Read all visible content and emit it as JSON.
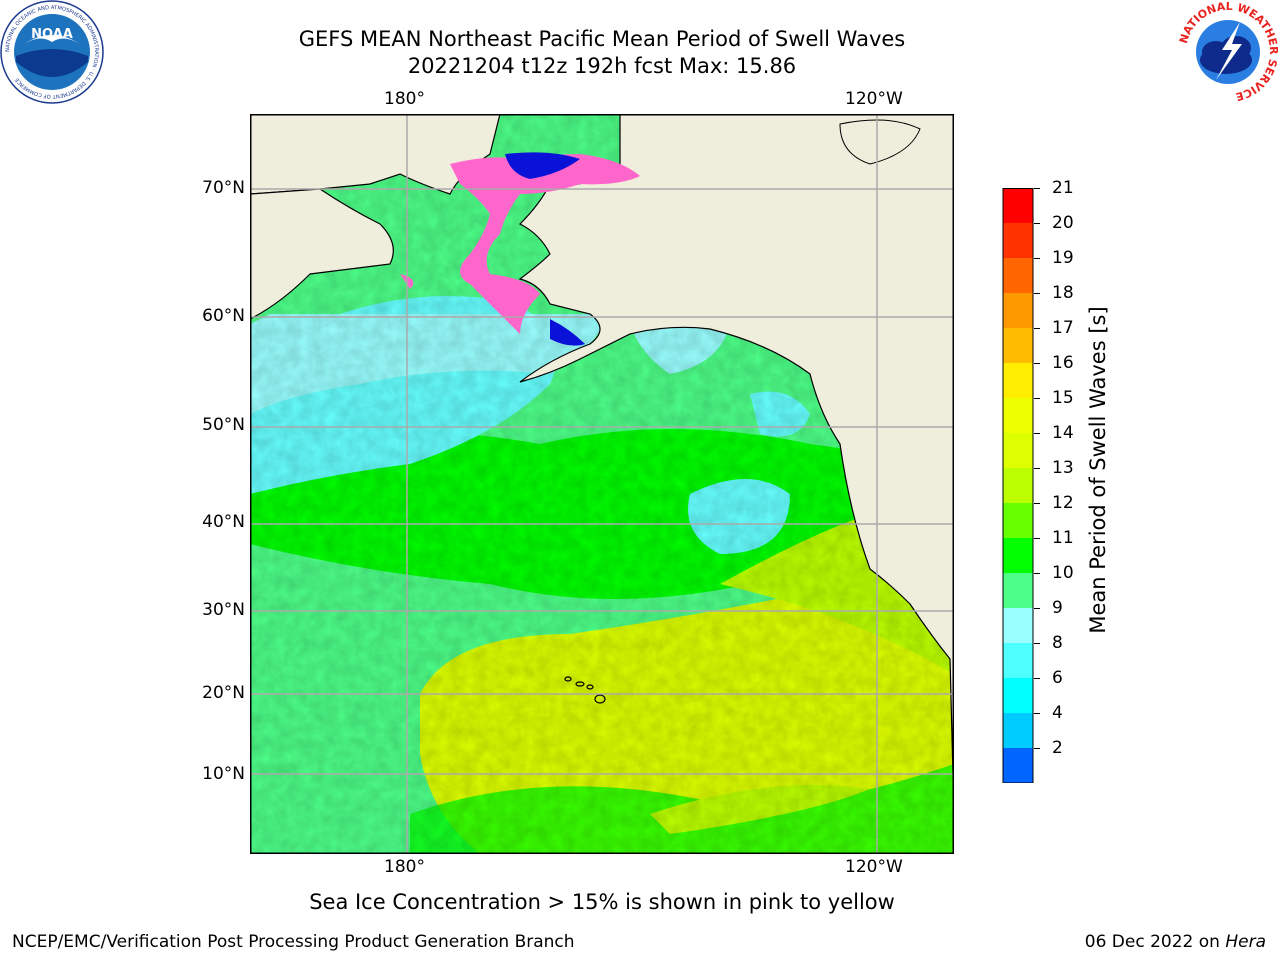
{
  "header": {
    "title_line1": "GEFS MEAN Northeast Pacific Mean Period of Swell Waves",
    "title_line2": "20221204 t12z 192h fcst   Max: 15.86"
  },
  "logos": {
    "left": "NOAA",
    "right": "NATIONAL WEATHER SERVICE",
    "left_ring_text": "NATIONAL OCEANIC AND ATMOSPHERIC ADMINISTRATION · U.S. DEPARTMENT OF COMMERCE"
  },
  "map": {
    "lon_labels_top": [
      "180°",
      "120°W"
    ],
    "lon_labels_bottom": [
      "180°",
      "120°W"
    ],
    "lat_labels": [
      "70°N",
      "60°N",
      "50°N",
      "40°N",
      "30°N",
      "20°N",
      "10°N"
    ],
    "colors": {
      "land": "#efeddb",
      "ice_pink": "#ff66cc",
      "ice_deep": "#0b12d8",
      "cyan": "#66ffff",
      "green": "#33ff33",
      "yellow": "#ddff00"
    }
  },
  "colorbar": {
    "title": "Mean Period of Swell Waves [s]",
    "labels": [
      "21",
      "20",
      "19",
      "18",
      "17",
      "16",
      "15",
      "14",
      "13",
      "12",
      "11",
      "10",
      "9",
      "8",
      "6",
      "4",
      "2"
    ],
    "colors": [
      "#ff0000",
      "#ff3300",
      "#ff6600",
      "#ff9900",
      "#ffbb00",
      "#ffee00",
      "#eeff00",
      "#ddff00",
      "#bbff00",
      "#66ff00",
      "#00ff00",
      "#4dff88",
      "#99ffff",
      "#4dffff",
      "#00ffff",
      "#00ccff",
      "#0066ff",
      "#0000ee"
    ]
  },
  "note": "Sea Ice Concentration > 15% is shown in pink to yellow",
  "footer": {
    "left": "NCEP/EMC/Verification Post Processing Product Generation Branch",
    "right_date": "06 Dec 2022 on ",
    "right_host": "Hera"
  }
}
